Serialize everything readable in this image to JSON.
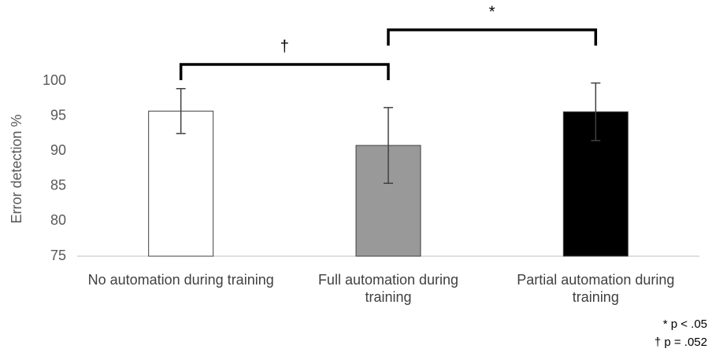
{
  "chart_data": {
    "type": "bar",
    "ylabel": "Error detection %",
    "categories": [
      "No automation during training",
      "Full automation during training",
      "Partial automation during training"
    ],
    "values": [
      95.7,
      90.8,
      95.6
    ],
    "errors": [
      3.2,
      5.4,
      4.1
    ],
    "colors": [
      "#ffffff",
      "#999999",
      "#000000"
    ],
    "ylim": [
      75,
      100
    ],
    "yticks": [
      75,
      80,
      85,
      90,
      95,
      100
    ],
    "grid": false,
    "annotations": [
      {
        "label": "†",
        "from": 0,
        "to": 1
      },
      {
        "label": "*",
        "from": 1,
        "to": 2
      }
    ],
    "notes": [
      "* p < .05",
      "† p = .052"
    ]
  }
}
